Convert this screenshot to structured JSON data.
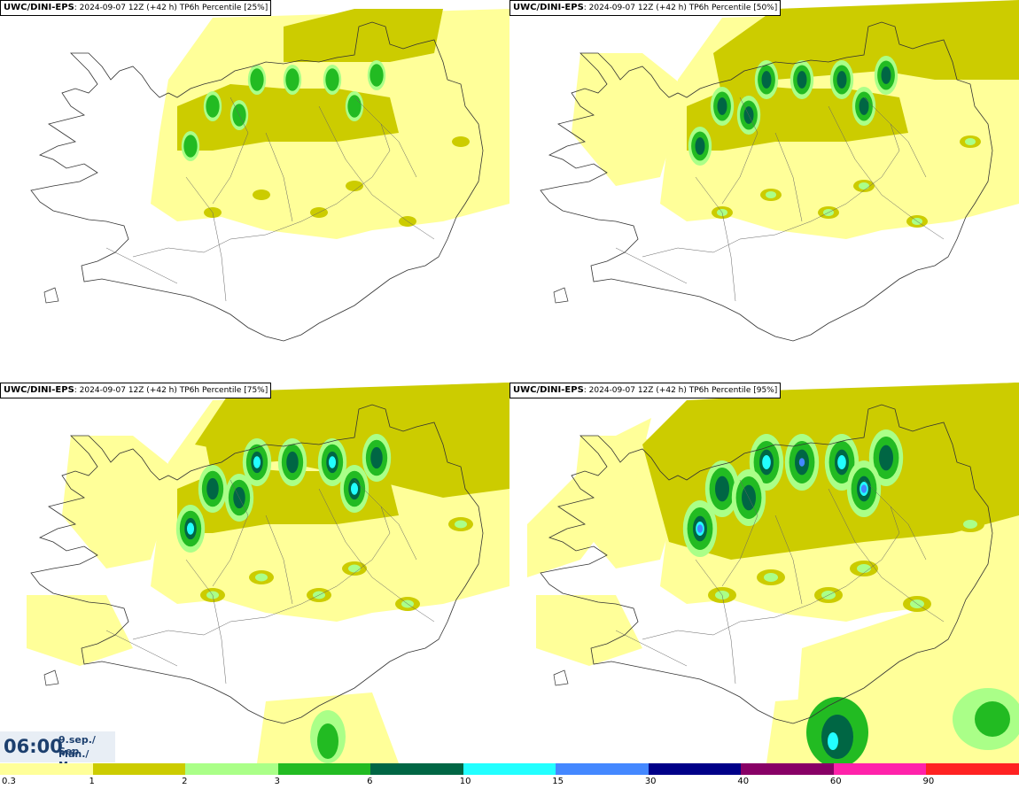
{
  "panels": [
    {
      "model": "UWC/DINI-EPS",
      "title": ": 2024-09-07 12Z (+42 h) TP6h Percentile [25%]",
      "level": 1
    },
    {
      "model": "UWC/DINI-EPS",
      "title": ": 2024-09-07 12Z (+42 h) TP6h Percentile [50%]",
      "level": 2
    },
    {
      "model": "UWC/DINI-EPS",
      "title": ": 2024-09-07 12Z (+42 h) TP6h Percentile [75%]",
      "level": 3
    },
    {
      "model": "UWC/DINI-EPS",
      "title": ": 2024-09-07 12Z (+42 h) TP6h Percentile [95%]",
      "level": 4
    }
  ],
  "timebox": {
    "time": "06:00",
    "date_line1": "9.sep./ Sep",
    "date_line2": "Mán./ Mon"
  },
  "legend": {
    "labels": [
      "0.3",
      "1",
      "2",
      "3",
      "6",
      "10",
      "15",
      "30",
      "40",
      "60",
      "90"
    ],
    "colors": [
      "#ffff99",
      "#cccc00",
      "#aaff88",
      "#22bb22",
      "#006644",
      "#22ffff",
      "#4488ff",
      "#000088",
      "#880066",
      "#ff22aa",
      "#ff2222"
    ]
  },
  "icons": {
    "land": "iceland-coastline-icon"
  }
}
